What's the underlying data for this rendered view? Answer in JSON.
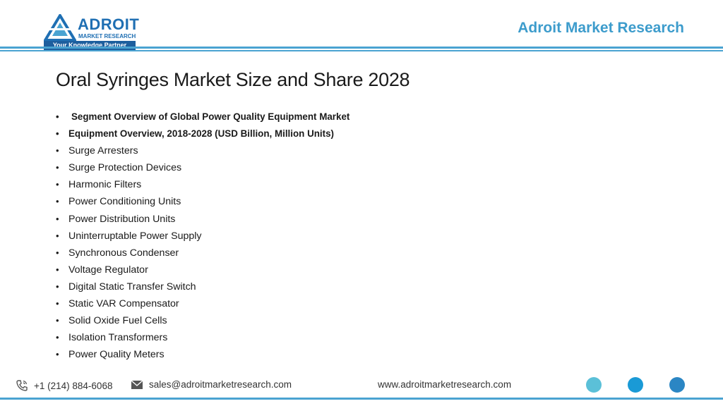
{
  "header": {
    "logo": {
      "name": "ADROIT",
      "subtitle": "MARKET RESEARCH",
      "tagline": "Your Knowledge Partner"
    },
    "brand_title": "Adroit Market Research"
  },
  "slide": {
    "title": "Oral Syringes Market Size and Share 2028",
    "bullets": [
      "Segment Overview of Global Power Quality Equipment Market",
      "Equipment Overview, 2018-2028 (USD Billion, Million Units)",
      "Surge Arresters",
      "Surge Protection Devices",
      "Harmonic Filters",
      "Power Conditioning Units",
      "Power Distribution Units",
      "Uninterruptable Power Supply",
      "Synchronous Condenser",
      "Voltage Regulator",
      "Digital Static Transfer Switch",
      "Static VAR Compensator",
      "Solid Oxide Fuel Cells",
      "Isolation Transformers",
      "Power Quality Meters"
    ]
  },
  "footer": {
    "phone": "+1 (214) 884-6068",
    "email": "sales@adroitmarketresearch.com",
    "website": "www.adroitmarketresearch.com",
    "icons": [
      "phone-icon",
      "mail-icon"
    ],
    "dot_colors": [
      "#5bc0d8",
      "#1a9ad6",
      "#2b86c4"
    ]
  },
  "colors": {
    "accent": "#4aa3d1",
    "brand": "#3d9ccc",
    "logo_blue": "#1f6fb3"
  }
}
